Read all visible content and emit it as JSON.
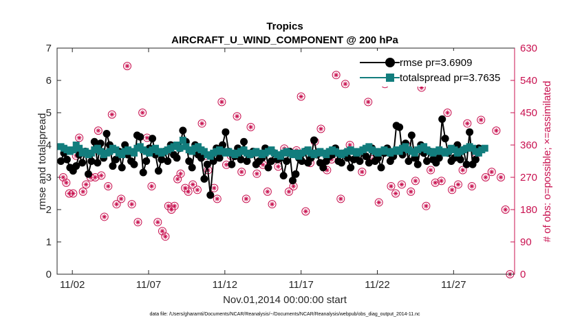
{
  "chart_data": {
    "type": "line",
    "title": "Tropics",
    "subtitle": "AIRCRAFT_U_WIND_COMPONENT @ 200 hPa",
    "xlabel": "Nov.01,2014 00:00:00 start",
    "ylabel_left": "rmse and totalspread",
    "ylabel_right": "# of obs: o=possible; ×=assimilated",
    "footnote": "data file: /Users/gharamti/Documents/NCAR/Reanalysis/~/Documents/NCAR/Reanalysis/webpub/obs_diag_output_2014-11.nc",
    "xlim": [
      0,
      30
    ],
    "ylim_left": [
      0,
      7
    ],
    "ylim_right": [
      0,
      630
    ],
    "x_ticks": [
      {
        "value": 1,
        "label": "11/02"
      },
      {
        "value": 6,
        "label": "11/07"
      },
      {
        "value": 11,
        "label": "11/12"
      },
      {
        "value": 16,
        "label": "11/17"
      },
      {
        "value": 21,
        "label": "11/22"
      },
      {
        "value": 26,
        "label": "11/27"
      }
    ],
    "y_ticks_left": [
      0,
      1,
      2,
      3,
      4,
      5,
      6,
      7
    ],
    "y_ticks_right": [
      0,
      90,
      180,
      270,
      360,
      450,
      540,
      630
    ],
    "legend": {
      "placement": "top-right"
    },
    "series": [
      {
        "name": "rmse",
        "legend_label": "rmse pr=3.6909",
        "color": "#000000",
        "marker": "circle",
        "values": [
          3.5,
          3.75,
          3.55,
          3.3,
          3.2,
          3.35,
          3.7,
          3.45,
          3.8,
          3.1,
          3.5,
          4.1,
          3.45,
          4.05,
          3.6,
          4.35,
          4.0,
          3.35,
          3.55,
          3.8,
          3.3,
          4.0,
          3.7,
          3.5,
          3.4,
          4.3,
          4.25,
          3.15,
          3.5,
          3.9,
          4.2,
          3.7,
          3.2,
          3.55,
          3.8,
          3.5,
          4.0,
          3.7,
          3.6,
          3.9,
          4.45,
          4.1,
          3.5,
          3.3,
          4.0,
          3.7,
          3.6,
          2.95,
          3.4,
          2.45,
          3.5,
          3.9,
          3.6,
          4.0,
          4.4,
          3.8,
          3.4,
          3.65,
          3.9,
          3.55,
          4.1,
          3.5,
          3.7,
          3.8,
          3.4,
          3.5,
          3.6,
          3.9,
          3.3,
          3.5,
          3.75,
          3.55,
          3.6,
          3.05,
          3.5,
          3.8,
          2.9,
          3.1,
          3.6,
          3.5,
          3.8,
          3.45,
          3.6,
          4.15,
          3.7,
          3.45,
          3.3,
          3.5,
          3.65,
          3.7,
          3.9,
          3.5,
          3.45,
          3.75,
          3.6,
          3.3,
          3.55,
          3.7,
          3.5,
          3.8,
          3.65,
          3.45,
          3.9,
          3.5,
          3.6,
          3.3,
          3.75,
          3.9,
          3.5,
          3.65,
          4.6,
          4.55,
          3.7,
          4.05,
          3.5,
          4.3,
          3.6,
          3.4,
          4.0,
          3.75,
          3.5,
          3.8,
          3.55,
          3.45,
          3.6,
          4.8,
          4.2,
          3.75,
          3.5,
          3.6,
          4.0,
          3.55,
          3.85,
          3.4,
          4.4,
          3.4,
          3.55,
          3.9
        ],
        "x_start": 0.25,
        "x_step": 0.2
      },
      {
        "name": "totalspread",
        "legend_label": "totalspread pr=3.7635",
        "color": "#127d7d",
        "marker": "square",
        "values": [
          3.95,
          3.9,
          3.85,
          3.8,
          3.85,
          4.0,
          3.9,
          3.75,
          3.8,
          3.7,
          3.75,
          3.85,
          3.9,
          3.8,
          3.7,
          3.75,
          3.8,
          3.9,
          3.85,
          3.75,
          3.7,
          3.8,
          3.85,
          3.8,
          3.75,
          3.9,
          3.95,
          3.85,
          3.8,
          3.75,
          3.85,
          3.9,
          3.8,
          3.75,
          3.8,
          3.85,
          3.9,
          3.95,
          4.0,
          3.9,
          4.15,
          3.95,
          3.85,
          3.8,
          3.9,
          3.95,
          3.85,
          3.8,
          3.7,
          3.65,
          3.75,
          3.8,
          3.85,
          3.8,
          3.75,
          3.8,
          3.75,
          3.7,
          3.75,
          3.8,
          3.85,
          3.75,
          3.7,
          3.75,
          3.8,
          3.75,
          3.7,
          3.75,
          3.8,
          3.85,
          3.75,
          3.7,
          3.65,
          3.75,
          3.8,
          3.75,
          3.7,
          3.75,
          3.65,
          3.75,
          3.8,
          3.85,
          3.75,
          3.7,
          3.75,
          3.8,
          3.75,
          3.7,
          3.8,
          3.85,
          3.8,
          3.75,
          3.7,
          3.75,
          3.8,
          3.85,
          3.8,
          3.75,
          3.8,
          3.85,
          3.9,
          3.95,
          3.85,
          3.8,
          3.75,
          3.8,
          3.85,
          3.8,
          3.75,
          3.8,
          3.85,
          3.8,
          3.9,
          3.95,
          3.85,
          3.8,
          3.75,
          3.85,
          3.9,
          3.95,
          3.85,
          3.8,
          3.75,
          3.8,
          3.85,
          3.8,
          3.75,
          3.8,
          3.9,
          3.85,
          3.75,
          3.8,
          3.85,
          3.9,
          3.95,
          3.9,
          3.8,
          3.75,
          3.85,
          3.9
        ],
        "x_start": 0.25,
        "x_step": 0.2
      },
      {
        "name": "obs_possible_and_assimilated",
        "axis": "right",
        "color": "#c8104f",
        "marker": "circle-asterisk",
        "points": [
          [
            0.4,
            270
          ],
          [
            0.6,
            255
          ],
          [
            0.8,
            225
          ],
          [
            1.05,
            225
          ],
          [
            1.25,
            330
          ],
          [
            1.45,
            380
          ],
          [
            1.7,
            230
          ],
          [
            1.9,
            250
          ],
          [
            2.2,
            270
          ],
          [
            2.5,
            270
          ],
          [
            2.7,
            400
          ],
          [
            2.9,
            275
          ],
          [
            3.1,
            160
          ],
          [
            3.35,
            245
          ],
          [
            3.6,
            445
          ],
          [
            3.9,
            195
          ],
          [
            4.2,
            210
          ],
          [
            4.6,
            580
          ],
          [
            4.9,
            195
          ],
          [
            5.3,
            145
          ],
          [
            5.6,
            450
          ],
          [
            5.9,
            380
          ],
          [
            6.2,
            245
          ],
          [
            6.6,
            145
          ],
          [
            6.9,
            120
          ],
          [
            7.1,
            105
          ],
          [
            7.3,
            190
          ],
          [
            7.5,
            180
          ],
          [
            7.7,
            190
          ],
          [
            7.9,
            265
          ],
          [
            8.1,
            280
          ],
          [
            8.4,
            240
          ],
          [
            8.6,
            230
          ],
          [
            8.9,
            250
          ],
          [
            9.2,
            235
          ],
          [
            9.5,
            420
          ],
          [
            9.7,
            330
          ],
          [
            9.9,
            290
          ],
          [
            10.3,
            240
          ],
          [
            10.5,
            210
          ],
          [
            10.8,
            480
          ],
          [
            11.1,
            305
          ],
          [
            11.4,
            330
          ],
          [
            11.8,
            440
          ],
          [
            12.1,
            285
          ],
          [
            12.4,
            210
          ],
          [
            12.7,
            410
          ],
          [
            13.1,
            280
          ],
          [
            13.5,
            305
          ],
          [
            13.8,
            230
          ],
          [
            14.1,
            195
          ],
          [
            14.5,
            300
          ],
          [
            14.9,
            350
          ],
          [
            15.2,
            230
          ],
          [
            15.5,
            245
          ],
          [
            15.7,
            345
          ],
          [
            16.0,
            495
          ],
          [
            16.3,
            175
          ],
          [
            16.6,
            310
          ],
          [
            16.9,
            370
          ],
          [
            17.3,
            405
          ],
          [
            17.7,
            290
          ],
          [
            18.0,
            320
          ],
          [
            18.3,
            555
          ],
          [
            18.6,
            210
          ],
          [
            18.9,
            530
          ],
          [
            19.2,
            360
          ],
          [
            19.6,
            340
          ],
          [
            20.0,
            285
          ],
          [
            20.4,
            480
          ],
          [
            20.7,
            320
          ],
          [
            21.1,
            200
          ],
          [
            21.5,
            530
          ],
          [
            21.9,
            245
          ],
          [
            22.2,
            225
          ],
          [
            22.6,
            250
          ],
          [
            22.9,
            360
          ],
          [
            23.2,
            230
          ],
          [
            23.5,
            260
          ],
          [
            23.9,
            520
          ],
          [
            24.2,
            190
          ],
          [
            24.5,
            290
          ],
          [
            24.8,
            255
          ],
          [
            25.2,
            260
          ],
          [
            25.6,
            450
          ],
          [
            25.9,
            235
          ],
          [
            26.3,
            250
          ],
          [
            26.6,
            290
          ],
          [
            26.9,
            420
          ],
          [
            27.2,
            245
          ],
          [
            27.5,
            335
          ],
          [
            27.8,
            430
          ],
          [
            28.1,
            270
          ],
          [
            28.5,
            285
          ],
          [
            28.8,
            400
          ],
          [
            29.1,
            270
          ],
          [
            29.4,
            180
          ],
          [
            29.7,
            0
          ]
        ]
      }
    ]
  }
}
